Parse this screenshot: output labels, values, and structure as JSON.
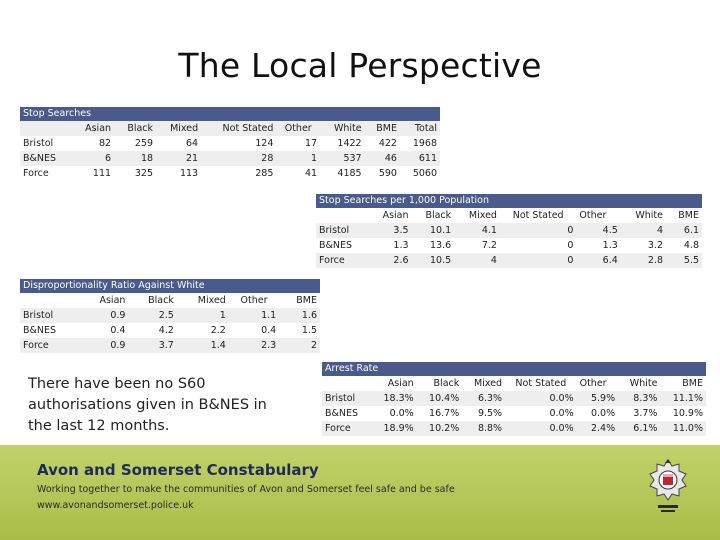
{
  "title": "The Local Perspective",
  "stop_searches": {
    "header": "Stop Searches",
    "columns": [
      "Asian",
      "Black",
      "Mixed",
      "Not Stated",
      "Other",
      "White",
      "BME",
      "Total"
    ],
    "rows": [
      {
        "label": "Bristol",
        "values": [
          "82",
          "259",
          "64",
          "124",
          "17",
          "1422",
          "422",
          "1968"
        ]
      },
      {
        "label": "B&NES",
        "values": [
          "6",
          "18",
          "21",
          "28",
          "1",
          "537",
          "46",
          "611"
        ]
      },
      {
        "label": "Force",
        "values": [
          "111",
          "325",
          "113",
          "285",
          "41",
          "4185",
          "590",
          "5060"
        ]
      }
    ]
  },
  "per_1000": {
    "header": "Stop Searches per 1,000 Population",
    "columns": [
      "Asian",
      "Black",
      "Mixed",
      "Not Stated",
      "Other",
      "White",
      "BME"
    ],
    "rows": [
      {
        "label": "Bristol",
        "values": [
          "3.5",
          "10.1",
          "4.1",
          "0",
          "4.5",
          "4",
          "6.1"
        ]
      },
      {
        "label": "B&NES",
        "values": [
          "1.3",
          "13.6",
          "7.2",
          "0",
          "1.3",
          "3.2",
          "4.8"
        ]
      },
      {
        "label": "Force",
        "values": [
          "2.6",
          "10.5",
          "4",
          "0",
          "6.4",
          "2.8",
          "5.5"
        ]
      }
    ]
  },
  "disproportionality": {
    "header": "Disproportionality Ratio Against White",
    "columns": [
      "Asian",
      "Black",
      "Mixed",
      "Other",
      "BME"
    ],
    "rows": [
      {
        "label": "Bristol",
        "values": [
          "0.9",
          "2.5",
          "1",
          "1.1",
          "1.6"
        ]
      },
      {
        "label": "B&NES",
        "values": [
          "0.4",
          "4.2",
          "2.2",
          "0.4",
          "1.5"
        ]
      },
      {
        "label": "Force",
        "values": [
          "0.9",
          "3.7",
          "1.4",
          "2.3",
          "2"
        ]
      }
    ]
  },
  "arrest_rate": {
    "header": "Arrest Rate",
    "columns": [
      "Asian",
      "Black",
      "Mixed",
      "Not Stated",
      "Other",
      "White",
      "BME"
    ],
    "rows": [
      {
        "label": "Bristol",
        "values": [
          "18.3%",
          "10.4%",
          "6.3%",
          "0.0%",
          "5.9%",
          "8.3%",
          "11.1%"
        ]
      },
      {
        "label": "B&NES",
        "values": [
          "0.0%",
          "16.7%",
          "9.5%",
          "0.0%",
          "0.0%",
          "3.7%",
          "10.9%"
        ]
      },
      {
        "label": "Force",
        "values": [
          "18.9%",
          "10.2%",
          "8.8%",
          "0.0%",
          "2.4%",
          "6.1%",
          "11.0%"
        ]
      }
    ]
  },
  "note": "There have been no S60 authorisations given in B&NES in the last 12 months.",
  "footer": {
    "org": "Avon and Somerset Constabulary",
    "tagline": "Working together to make the communities of Avon and Somerset feel safe and be safe",
    "url": "www.avonandsomerset.police.uk",
    "background": "#b4c84c",
    "org_color": "#1e2a5a"
  },
  "colors": {
    "table_header": "#4a5a8a",
    "row_band": "#eeeeee"
  },
  "icons": {
    "crest": "police-crest-icon"
  }
}
